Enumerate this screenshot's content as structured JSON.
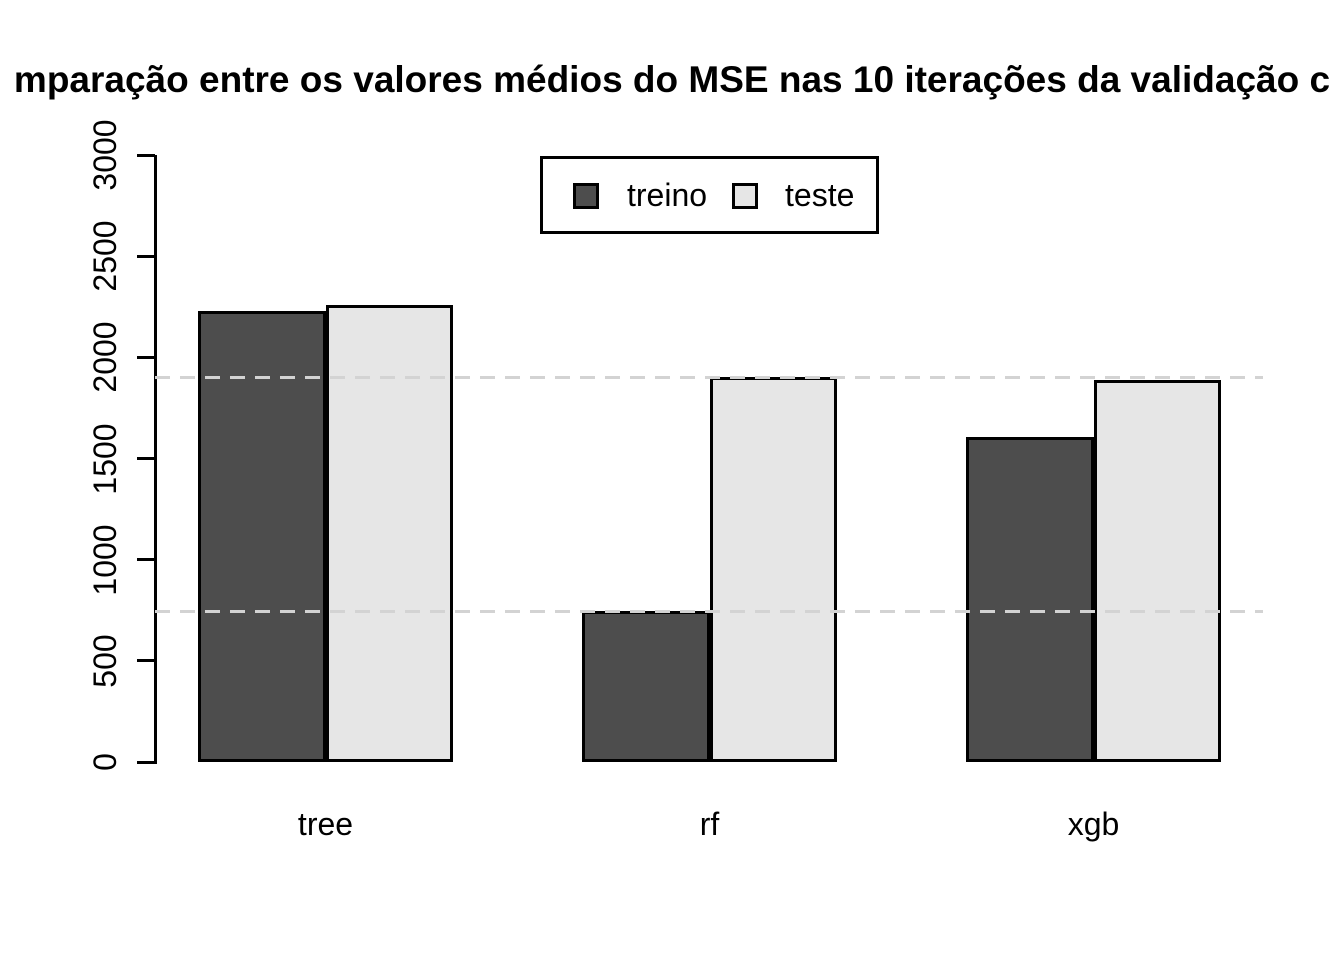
{
  "chart_data": {
    "type": "bar",
    "title": "mparação entre os valores médios do MSE nas 10 iterações da validação c",
    "categories": [
      "tree",
      "rf",
      "xgb"
    ],
    "series": [
      {
        "name": "treino",
        "color": "#4d4d4d",
        "values": [
          2230,
          745,
          1605
        ]
      },
      {
        "name": "teste",
        "color": "#e6e6e6",
        "values": [
          2260,
          1905,
          1890
        ]
      }
    ],
    "xlabel": "",
    "ylabel": "",
    "ylim": [
      0,
      3000
    ],
    "yticks": [
      0,
      500,
      1000,
      1500,
      2000,
      2500,
      3000
    ],
    "ytick_labels_rotated": true,
    "reference_lines": {
      "values": [
        745,
        1900
      ],
      "style": "dashed",
      "color": "#d3d3d3"
    },
    "legend": {
      "position": "top-center",
      "entries": [
        "treino",
        "teste"
      ]
    },
    "bar_border_color": "#000000",
    "axis_color": "#000000",
    "background": "#ffffff",
    "grid": "off (two dashed horizontal reference lines only)"
  }
}
